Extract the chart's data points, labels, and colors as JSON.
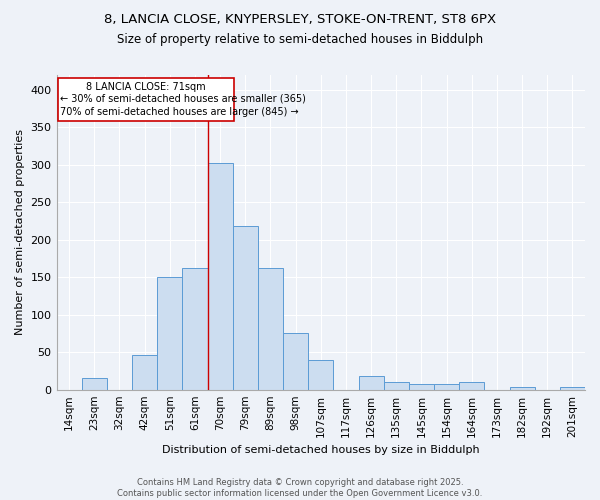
{
  "title_line1": "8, LANCIA CLOSE, KNYPERSLEY, STOKE-ON-TRENT, ST8 6PX",
  "title_line2": "Size of property relative to semi-detached houses in Biddulph",
  "xlabel": "Distribution of semi-detached houses by size in Biddulph",
  "ylabel": "Number of semi-detached properties",
  "categories": [
    "14sqm",
    "23sqm",
    "32sqm",
    "42sqm",
    "51sqm",
    "61sqm",
    "70sqm",
    "79sqm",
    "89sqm",
    "98sqm",
    "107sqm",
    "117sqm",
    "126sqm",
    "135sqm",
    "145sqm",
    "154sqm",
    "164sqm",
    "173sqm",
    "182sqm",
    "192sqm",
    "201sqm"
  ],
  "values": [
    0,
    15,
    0,
    46,
    150,
    163,
    303,
    218,
    163,
    75,
    40,
    0,
    18,
    10,
    8,
    8,
    10,
    0,
    3,
    0,
    3
  ],
  "bar_color": "#ccddf0",
  "bar_edge_color": "#5b9bd5",
  "background_color": "#eef2f8",
  "vline_x_index": 6,
  "vline_color": "#cc0000",
  "annotation_title": "8 LANCIA CLOSE: 71sqm",
  "annotation_line1": "← 30% of semi-detached houses are smaller (365)",
  "annotation_line2": "70% of semi-detached houses are larger (845) →",
  "annotation_box_color": "#ffffff",
  "annotation_box_edge": "#cc0000",
  "ylim": [
    0,
    420
  ],
  "yticks": [
    0,
    50,
    100,
    150,
    200,
    250,
    300,
    350,
    400
  ],
  "footer_line1": "Contains HM Land Registry data © Crown copyright and database right 2025.",
  "footer_line2": "Contains public sector information licensed under the Open Government Licence v3.0."
}
